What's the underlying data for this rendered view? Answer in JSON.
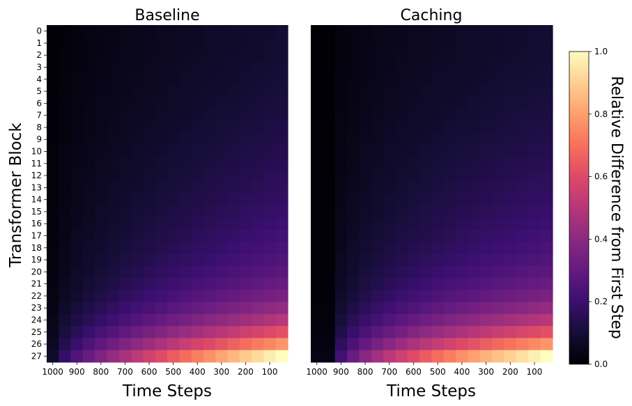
{
  "chart_data": {
    "type": "heatmap",
    "panels": [
      {
        "title": "Baseline",
        "variant": "baseline"
      },
      {
        "title": "Caching",
        "variant": "caching"
      }
    ],
    "xlabel": "Time Steps",
    "ylabel": "Transformer Block",
    "x_tick_labels": [
      "1000",
      "900",
      "800",
      "700",
      "600",
      "500",
      "400",
      "300",
      "200",
      "100"
    ],
    "n_timestep_columns": 20,
    "rows": [
      "0",
      "1",
      "2",
      "3",
      "4",
      "5",
      "6",
      "7",
      "8",
      "9",
      "10",
      "11",
      "12",
      "13",
      "14",
      "15",
      "16",
      "17",
      "18",
      "19",
      "20",
      "21",
      "22",
      "23",
      "24",
      "25",
      "26",
      "27"
    ],
    "colorbar": {
      "label": "Relative Difference from First Step",
      "colormap": "magma",
      "vmin": 0.0,
      "vmax": 1.0,
      "tick_labels": [
        "0.0",
        "0.2",
        "0.4",
        "0.6",
        "0.8",
        "1.0"
      ]
    },
    "value_model": {
      "description_values": "values rise with time step (left to right) and with block depth (top to bottom); max 1.0 at block 27, last step",
      "baseline_corner_values": {
        "top_right": 0.1,
        "row_20_right": 0.32,
        "row_24_right": 0.62,
        "bottom_right": 1.0
      },
      "caching_corner_values": {
        "top_right": 0.08,
        "row_20_right": 0.3,
        "row_24_right": 0.62,
        "bottom_right": 1.0
      }
    }
  }
}
